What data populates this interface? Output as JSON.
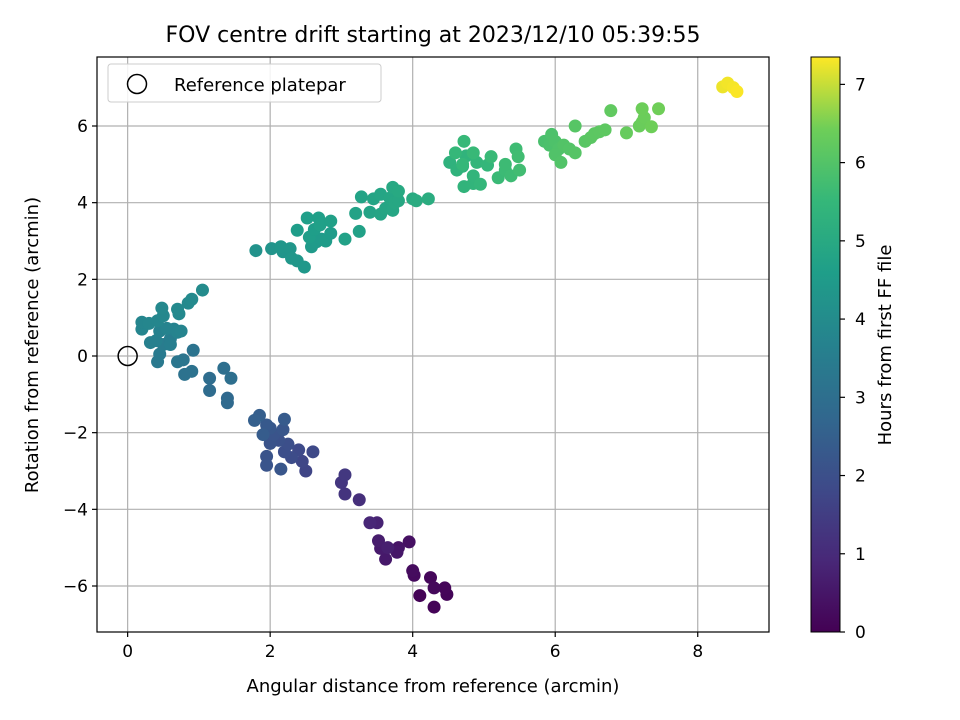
{
  "chart_data": {
    "type": "scatter",
    "title": "FOV centre drift starting at 2023/12/10 05:39:55",
    "xlabel": "Angular distance from reference (arcmin)",
    "ylabel": "Rotation from reference (arcmin)",
    "xlim": [
      -0.43,
      9.0
    ],
    "ylim": [
      -7.2,
      7.8
    ],
    "xticks": [
      0,
      2,
      4,
      6,
      8
    ],
    "yticks": [
      -6,
      -4,
      -2,
      0,
      2,
      4,
      6
    ],
    "xtick_labels": [
      "0",
      "2",
      "4",
      "6",
      "8"
    ],
    "ytick_labels": [
      "−6",
      "−4",
      "−2",
      "0",
      "2",
      "4",
      "6"
    ],
    "grid": true,
    "legend": {
      "position": "top-left",
      "entries": [
        "Reference platepar"
      ]
    },
    "reference_point": {
      "x": 0,
      "y": 0
    },
    "colorbar": {
      "label": "Hours from first FF file",
      "min": 0,
      "max": 7.35,
      "ticks": [
        0,
        1,
        2,
        3,
        4,
        5,
        6,
        7
      ],
      "tick_labels": [
        "0",
        "1",
        "2",
        "3",
        "4",
        "5",
        "6",
        "7"
      ],
      "colormap": "viridis"
    },
    "points": [
      {
        "x": 4.1,
        "y": -6.25,
        "c": 0.05
      },
      {
        "x": 4.3,
        "y": -6.55,
        "c": 0.08
      },
      {
        "x": 4.48,
        "y": -6.22,
        "c": 0.1
      },
      {
        "x": 4.45,
        "y": -6.05,
        "c": 0.12
      },
      {
        "x": 4.25,
        "y": -5.78,
        "c": 0.15
      },
      {
        "x": 4.3,
        "y": -6.05,
        "c": 0.18
      },
      {
        "x": 4.02,
        "y": -5.72,
        "c": 0.22
      },
      {
        "x": 4.0,
        "y": -5.6,
        "c": 0.26
      },
      {
        "x": 3.95,
        "y": -4.85,
        "c": 0.35
      },
      {
        "x": 3.8,
        "y": -5.0,
        "c": 0.45
      },
      {
        "x": 3.78,
        "y": -5.12,
        "c": 0.5
      },
      {
        "x": 3.62,
        "y": -5.3,
        "c": 0.55
      },
      {
        "x": 3.55,
        "y": -5.02,
        "c": 0.6
      },
      {
        "x": 3.52,
        "y": -4.82,
        "c": 0.65
      },
      {
        "x": 3.65,
        "y": -5.0,
        "c": 0.7
      },
      {
        "x": 3.5,
        "y": -4.35,
        "c": 0.8
      },
      {
        "x": 3.4,
        "y": -4.35,
        "c": 0.9
      },
      {
        "x": 3.25,
        "y": -3.75,
        "c": 1.1
      },
      {
        "x": 3.05,
        "y": -3.6,
        "c": 1.25
      },
      {
        "x": 3.0,
        "y": -3.3,
        "c": 1.3
      },
      {
        "x": 3.05,
        "y": -3.1,
        "c": 1.35
      },
      {
        "x": 2.5,
        "y": -3.0,
        "c": 1.7
      },
      {
        "x": 2.45,
        "y": -2.75,
        "c": 1.75
      },
      {
        "x": 2.6,
        "y": -2.5,
        "c": 1.8
      },
      {
        "x": 2.4,
        "y": -2.45,
        "c": 1.85
      },
      {
        "x": 2.3,
        "y": -2.65,
        "c": 1.9
      },
      {
        "x": 2.2,
        "y": -2.5,
        "c": 1.95
      },
      {
        "x": 2.25,
        "y": -2.3,
        "c": 2.0
      },
      {
        "x": 2.12,
        "y": -2.2,
        "c": 2.05
      },
      {
        "x": 2.0,
        "y": -2.28,
        "c": 2.1
      },
      {
        "x": 2.05,
        "y": -2.05,
        "c": 2.15
      },
      {
        "x": 2.18,
        "y": -1.92,
        "c": 2.2
      },
      {
        "x": 2.0,
        "y": -1.88,
        "c": 2.25
      },
      {
        "x": 1.95,
        "y": -1.8,
        "c": 2.3
      },
      {
        "x": 2.2,
        "y": -1.65,
        "c": 2.35
      },
      {
        "x": 1.9,
        "y": -2.05,
        "c": 2.4
      },
      {
        "x": 1.85,
        "y": -1.55,
        "c": 2.45
      },
      {
        "x": 1.78,
        "y": -1.68,
        "c": 2.5
      },
      {
        "x": 1.95,
        "y": -2.62,
        "c": 2.1
      },
      {
        "x": 1.95,
        "y": -2.85,
        "c": 2.15
      },
      {
        "x": 2.15,
        "y": -2.95,
        "c": 2.2
      },
      {
        "x": 1.4,
        "y": -1.1,
        "c": 2.8
      },
      {
        "x": 1.4,
        "y": -1.22,
        "c": 2.82
      },
      {
        "x": 1.15,
        "y": -0.9,
        "c": 2.9
      },
      {
        "x": 1.15,
        "y": -0.58,
        "c": 2.95
      },
      {
        "x": 1.35,
        "y": -0.32,
        "c": 3.0
      },
      {
        "x": 1.45,
        "y": -0.58,
        "c": 3.02
      },
      {
        "x": 0.92,
        "y": 0.15,
        "c": 3.15
      },
      {
        "x": 0.9,
        "y": -0.4,
        "c": 3.1
      },
      {
        "x": 0.8,
        "y": -0.48,
        "c": 3.12
      },
      {
        "x": 0.78,
        "y": -0.1,
        "c": 3.2
      },
      {
        "x": 0.7,
        "y": -0.15,
        "c": 3.25
      },
      {
        "x": 0.42,
        "y": -0.15,
        "c": 3.35
      },
      {
        "x": 0.45,
        "y": 0.05,
        "c": 3.4
      },
      {
        "x": 0.5,
        "y": 0.3,
        "c": 3.45
      },
      {
        "x": 0.6,
        "y": 0.45,
        "c": 3.5
      },
      {
        "x": 0.6,
        "y": 0.3,
        "c": 3.55
      },
      {
        "x": 0.4,
        "y": 0.4,
        "c": 3.6
      },
      {
        "x": 0.32,
        "y": 0.35,
        "c": 3.62
      },
      {
        "x": 0.45,
        "y": 0.65,
        "c": 3.65
      },
      {
        "x": 0.65,
        "y": 0.7,
        "c": 3.68
      },
      {
        "x": 0.55,
        "y": 0.72,
        "c": 3.7
      },
      {
        "x": 0.7,
        "y": 0.62,
        "c": 3.72
      },
      {
        "x": 0.75,
        "y": 0.65,
        "c": 3.74
      },
      {
        "x": 0.2,
        "y": 0.7,
        "c": 3.76
      },
      {
        "x": 0.2,
        "y": 0.88,
        "c": 3.78
      },
      {
        "x": 0.3,
        "y": 0.85,
        "c": 3.8
      },
      {
        "x": 0.42,
        "y": 0.92,
        "c": 3.82
      },
      {
        "x": 0.5,
        "y": 1.05,
        "c": 3.84
      },
      {
        "x": 0.48,
        "y": 1.25,
        "c": 3.86
      },
      {
        "x": 0.72,
        "y": 1.1,
        "c": 3.88
      },
      {
        "x": 0.7,
        "y": 1.22,
        "c": 3.9
      },
      {
        "x": 0.85,
        "y": 1.38,
        "c": 3.92
      },
      {
        "x": 0.9,
        "y": 1.48,
        "c": 3.94
      },
      {
        "x": 1.05,
        "y": 1.72,
        "c": 3.96
      },
      {
        "x": 1.8,
        "y": 2.75,
        "c": 4.2
      },
      {
        "x": 2.02,
        "y": 2.8,
        "c": 4.25
      },
      {
        "x": 2.18,
        "y": 2.72,
        "c": 4.3
      },
      {
        "x": 2.15,
        "y": 2.85,
        "c": 4.32
      },
      {
        "x": 2.28,
        "y": 2.8,
        "c": 4.34
      },
      {
        "x": 2.3,
        "y": 2.55,
        "c": 4.36
      },
      {
        "x": 2.38,
        "y": 2.48,
        "c": 4.38
      },
      {
        "x": 2.48,
        "y": 2.32,
        "c": 4.4
      },
      {
        "x": 2.58,
        "y": 2.85,
        "c": 4.45
      },
      {
        "x": 2.65,
        "y": 2.98,
        "c": 4.48
      },
      {
        "x": 2.72,
        "y": 3.05,
        "c": 4.5
      },
      {
        "x": 2.78,
        "y": 3.0,
        "c": 4.52
      },
      {
        "x": 2.85,
        "y": 3.2,
        "c": 4.54
      },
      {
        "x": 2.38,
        "y": 3.28,
        "c": 4.56
      },
      {
        "x": 2.55,
        "y": 3.1,
        "c": 4.58
      },
      {
        "x": 2.62,
        "y": 3.3,
        "c": 4.6
      },
      {
        "x": 2.52,
        "y": 3.6,
        "c": 4.62
      },
      {
        "x": 2.68,
        "y": 3.6,
        "c": 4.64
      },
      {
        "x": 2.7,
        "y": 3.42,
        "c": 4.66
      },
      {
        "x": 2.85,
        "y": 3.52,
        "c": 4.68
      },
      {
        "x": 3.05,
        "y": 3.05,
        "c": 4.7
      },
      {
        "x": 3.25,
        "y": 3.25,
        "c": 4.72
      },
      {
        "x": 3.2,
        "y": 3.72,
        "c": 4.74
      },
      {
        "x": 3.28,
        "y": 4.15,
        "c": 4.76
      },
      {
        "x": 3.4,
        "y": 3.75,
        "c": 4.78
      },
      {
        "x": 3.45,
        "y": 4.1,
        "c": 4.8
      },
      {
        "x": 3.55,
        "y": 3.7,
        "c": 4.82
      },
      {
        "x": 3.55,
        "y": 4.22,
        "c": 4.84
      },
      {
        "x": 3.62,
        "y": 3.85,
        "c": 4.86
      },
      {
        "x": 3.68,
        "y": 4.12,
        "c": 4.88
      },
      {
        "x": 3.72,
        "y": 3.8,
        "c": 4.9
      },
      {
        "x": 3.75,
        "y": 4.0,
        "c": 4.92
      },
      {
        "x": 3.8,
        "y": 4.05,
        "c": 4.94
      },
      {
        "x": 3.72,
        "y": 4.4,
        "c": 4.96
      },
      {
        "x": 3.8,
        "y": 4.3,
        "c": 4.98
      },
      {
        "x": 4.0,
        "y": 4.1,
        "c": 5.05
      },
      {
        "x": 4.05,
        "y": 4.05,
        "c": 5.08
      },
      {
        "x": 4.22,
        "y": 4.1,
        "c": 5.1
      },
      {
        "x": 4.52,
        "y": 5.05,
        "c": 5.3
      },
      {
        "x": 4.62,
        "y": 4.85,
        "c": 5.32
      },
      {
        "x": 4.7,
        "y": 4.95,
        "c": 5.34
      },
      {
        "x": 4.75,
        "y": 5.22,
        "c": 5.36
      },
      {
        "x": 4.72,
        "y": 4.42,
        "c": 5.38
      },
      {
        "x": 4.85,
        "y": 4.5,
        "c": 5.4
      },
      {
        "x": 4.85,
        "y": 4.7,
        "c": 5.42
      },
      {
        "x": 4.9,
        "y": 5.05,
        "c": 5.44
      },
      {
        "x": 4.95,
        "y": 4.48,
        "c": 5.46
      },
      {
        "x": 5.05,
        "y": 4.98,
        "c": 5.48
      },
      {
        "x": 4.7,
        "y": 5.0,
        "c": 5.5
      },
      {
        "x": 4.6,
        "y": 5.3,
        "c": 5.52
      },
      {
        "x": 4.72,
        "y": 5.6,
        "c": 5.54
      },
      {
        "x": 4.85,
        "y": 5.3,
        "c": 5.56
      },
      {
        "x": 5.1,
        "y": 5.2,
        "c": 5.58
      },
      {
        "x": 5.2,
        "y": 4.65,
        "c": 5.6
      },
      {
        "x": 5.3,
        "y": 4.85,
        "c": 5.62
      },
      {
        "x": 5.3,
        "y": 5.0,
        "c": 5.64
      },
      {
        "x": 5.38,
        "y": 4.7,
        "c": 5.66
      },
      {
        "x": 5.45,
        "y": 5.4,
        "c": 5.68
      },
      {
        "x": 5.48,
        "y": 5.2,
        "c": 5.7
      },
      {
        "x": 5.5,
        "y": 4.85,
        "c": 5.72
      },
      {
        "x": 5.85,
        "y": 5.6,
        "c": 5.85
      },
      {
        "x": 5.92,
        "y": 5.5,
        "c": 5.88
      },
      {
        "x": 5.95,
        "y": 5.78,
        "c": 5.9
      },
      {
        "x": 6.0,
        "y": 5.6,
        "c": 5.92
      },
      {
        "x": 6.05,
        "y": 5.4,
        "c": 5.94
      },
      {
        "x": 6.0,
        "y": 5.25,
        "c": 5.96
      },
      {
        "x": 6.08,
        "y": 5.05,
        "c": 5.98
      },
      {
        "x": 6.12,
        "y": 5.5,
        "c": 6.0
      },
      {
        "x": 6.2,
        "y": 5.4,
        "c": 6.02
      },
      {
        "x": 6.28,
        "y": 5.3,
        "c": 6.04
      },
      {
        "x": 6.28,
        "y": 6.0,
        "c": 6.06
      },
      {
        "x": 6.42,
        "y": 5.6,
        "c": 6.1
      },
      {
        "x": 6.5,
        "y": 5.7,
        "c": 6.12
      },
      {
        "x": 6.55,
        "y": 5.8,
        "c": 6.14
      },
      {
        "x": 6.62,
        "y": 5.85,
        "c": 6.16
      },
      {
        "x": 6.7,
        "y": 5.9,
        "c": 6.18
      },
      {
        "x": 6.78,
        "y": 6.4,
        "c": 6.22
      },
      {
        "x": 7.0,
        "y": 5.82,
        "c": 6.3
      },
      {
        "x": 7.18,
        "y": 6.0,
        "c": 6.34
      },
      {
        "x": 7.22,
        "y": 6.1,
        "c": 6.36
      },
      {
        "x": 7.25,
        "y": 6.22,
        "c": 6.38
      },
      {
        "x": 7.22,
        "y": 6.45,
        "c": 6.4
      },
      {
        "x": 7.35,
        "y": 5.98,
        "c": 6.42
      },
      {
        "x": 7.45,
        "y": 6.45,
        "c": 6.44
      },
      {
        "x": 8.35,
        "y": 7.02,
        "c": 7.25
      },
      {
        "x": 8.42,
        "y": 7.12,
        "c": 7.28
      },
      {
        "x": 8.5,
        "y": 7.0,
        "c": 7.3
      },
      {
        "x": 8.55,
        "y": 6.9,
        "c": 7.33
      }
    ]
  }
}
